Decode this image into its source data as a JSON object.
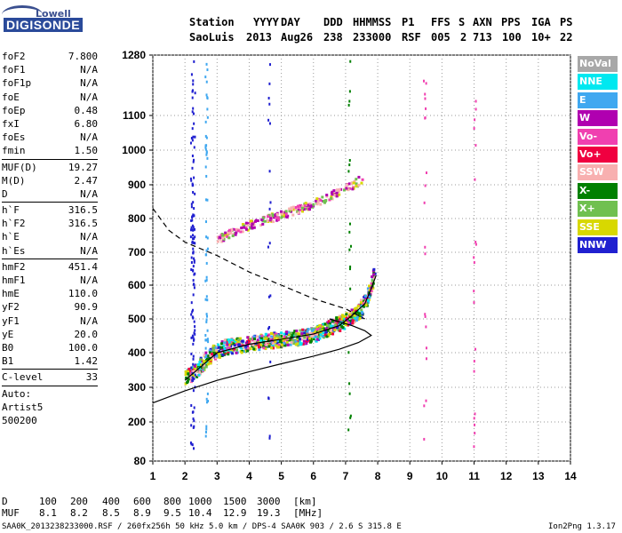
{
  "logo": {
    "top": "Lowell",
    "main": "DIGISONDE"
  },
  "header": {
    "labels": [
      "Station",
      "YYYY",
      "DAY",
      "DDD",
      "HHMMSS",
      "P1",
      "FFS",
      "S",
      "AXN",
      "PPS",
      "IGA",
      "PS"
    ],
    "values": [
      "SaoLuis",
      "2013",
      "Aug26",
      "238",
      "233000",
      "RSF",
      "005",
      "2",
      "713",
      "100",
      "10+",
      "22"
    ]
  },
  "params": {
    "group1": [
      {
        "name": "foF2",
        "value": "7.800"
      },
      {
        "name": "foF1",
        "value": "N/A"
      },
      {
        "name": "foF1p",
        "value": "N/A"
      },
      {
        "name": "foE",
        "value": "N/A"
      },
      {
        "name": "foEp",
        "value": "0.48"
      },
      {
        "name": "fxI",
        "value": "6.80"
      },
      {
        "name": "foEs",
        "value": "N/A"
      },
      {
        "name": "fmin",
        "value": "1.50"
      }
    ],
    "group2": [
      {
        "name": "MUF(D)",
        "value": "19.27"
      },
      {
        "name": "M(D)",
        "value": "2.47"
      },
      {
        "name": "D",
        "value": "N/A"
      }
    ],
    "group3": [
      {
        "name": "h`F",
        "value": "316.5"
      },
      {
        "name": "h`F2",
        "value": "316.5"
      },
      {
        "name": "h`E",
        "value": "N/A"
      },
      {
        "name": "h`Es",
        "value": "N/A"
      }
    ],
    "group4": [
      {
        "name": "hmF2",
        "value": "451.4"
      },
      {
        "name": "hmF1",
        "value": "N/A"
      },
      {
        "name": "hmE",
        "value": "110.0"
      },
      {
        "name": "yF2",
        "value": "90.9"
      },
      {
        "name": "yF1",
        "value": "N/A"
      },
      {
        "name": "yE",
        "value": "20.0"
      },
      {
        "name": "B0",
        "value": "100.0"
      },
      {
        "name": "B1",
        "value": "1.42"
      }
    ],
    "clevel": {
      "name": "C-level",
      "value": "33"
    },
    "auto": [
      "Auto:",
      "Artist5",
      "500200"
    ]
  },
  "legend": [
    {
      "label": "NoVal",
      "color": "#a8a8a8"
    },
    {
      "label": "NNE",
      "color": "#00e8f0"
    },
    {
      "label": "E",
      "color": "#40a8f0"
    },
    {
      "label": "W",
      "color": "#b000b0"
    },
    {
      "label": "Vo-",
      "color": "#f040b0"
    },
    {
      "label": "Vo+",
      "color": "#f00040"
    },
    {
      "label": "SSW",
      "color": "#f8b0b0"
    },
    {
      "label": "X-",
      "color": "#008000"
    },
    {
      "label": "X+",
      "color": "#70c050"
    },
    {
      "label": "SSE",
      "color": "#d8d800"
    },
    {
      "label": "NNW",
      "color": "#2020d0"
    }
  ],
  "footer": {
    "row_d_label": "D",
    "row_d_values": [
      "100",
      "200",
      "400",
      "600",
      "800",
      "1000",
      "1500",
      "3000"
    ],
    "row_d_unit": "[km]",
    "row_muf_label": "MUF",
    "row_muf_values": [
      "8.1",
      "8.2",
      "8.5",
      "8.9",
      "9.5",
      "10.4",
      "12.9",
      "19.3"
    ],
    "row_muf_unit": "[MHz]",
    "file_info": "SAA0K_2013238233000.RSF / 260fx256h 50 kHz 5.0 km / DPS-4 SAA0K 903 / 2.6 S 315.8 E",
    "version": "Ion2Png 1.3.17"
  },
  "chart_data": {
    "type": "scatter",
    "x_ticks": [
      1,
      2,
      3,
      4,
      5,
      6,
      7,
      8,
      9,
      10,
      11,
      12,
      13,
      14
    ],
    "y_ticks": [
      80,
      200,
      300,
      400,
      500,
      600,
      700,
      800,
      900,
      1000,
      1100,
      1280
    ],
    "y_scale": "nonlinear (height-like, compressed at low values)",
    "xlim": [
      1,
      14
    ],
    "ylim": [
      80,
      1280
    ],
    "grid": "dotted",
    "series": [
      {
        "name": "ordinary trace",
        "points": [
          [
            2.0,
            330
          ],
          [
            2.4,
            360
          ],
          [
            2.8,
            400
          ],
          [
            3.2,
            420
          ],
          [
            3.6,
            425
          ],
          [
            4.0,
            430
          ],
          [
            4.5,
            438
          ],
          [
            5.0,
            442
          ],
          [
            5.5,
            448
          ],
          [
            6.0,
            458
          ],
          [
            6.5,
            478
          ],
          [
            7.0,
            500
          ],
          [
            7.4,
            525
          ],
          [
            7.6,
            560
          ],
          [
            7.8,
            610
          ],
          [
            7.9,
            660
          ]
        ]
      },
      {
        "name": "multihop trace",
        "points": [
          [
            3.0,
            740
          ],
          [
            3.5,
            765
          ],
          [
            4.0,
            785
          ],
          [
            4.5,
            800
          ],
          [
            5.0,
            815
          ],
          [
            5.5,
            830
          ],
          [
            6.0,
            850
          ],
          [
            6.5,
            870
          ],
          [
            7.0,
            895
          ],
          [
            7.5,
            920
          ]
        ]
      },
      {
        "name": "profile (solid)",
        "points": [
          [
            1.0,
            255
          ],
          [
            2.0,
            290
          ],
          [
            3.0,
            320
          ],
          [
            4.0,
            345
          ],
          [
            5.0,
            368
          ],
          [
            6.0,
            390
          ],
          [
            6.8,
            410
          ],
          [
            7.4,
            430
          ],
          [
            7.8,
            451
          ],
          [
            7.6,
            465
          ],
          [
            7.2,
            480
          ],
          [
            6.5,
            500
          ]
        ]
      },
      {
        "name": "profile (dashed)",
        "points": [
          [
            1.0,
            830
          ],
          [
            1.5,
            765
          ],
          [
            2.0,
            730
          ],
          [
            3.0,
            690
          ],
          [
            4.0,
            640
          ],
          [
            5.0,
            600
          ],
          [
            6.0,
            560
          ],
          [
            7.0,
            530
          ],
          [
            7.6,
            500
          ]
        ]
      },
      {
        "name": "fitted trace",
        "points": [
          [
            2.0,
            320
          ],
          [
            3.0,
            400
          ],
          [
            4.0,
            425
          ],
          [
            5.0,
            440
          ],
          [
            6.0,
            455
          ],
          [
            6.8,
            480
          ],
          [
            7.2,
            510
          ],
          [
            7.6,
            545
          ],
          [
            7.8,
            590
          ],
          [
            7.95,
            630
          ]
        ]
      }
    ]
  }
}
